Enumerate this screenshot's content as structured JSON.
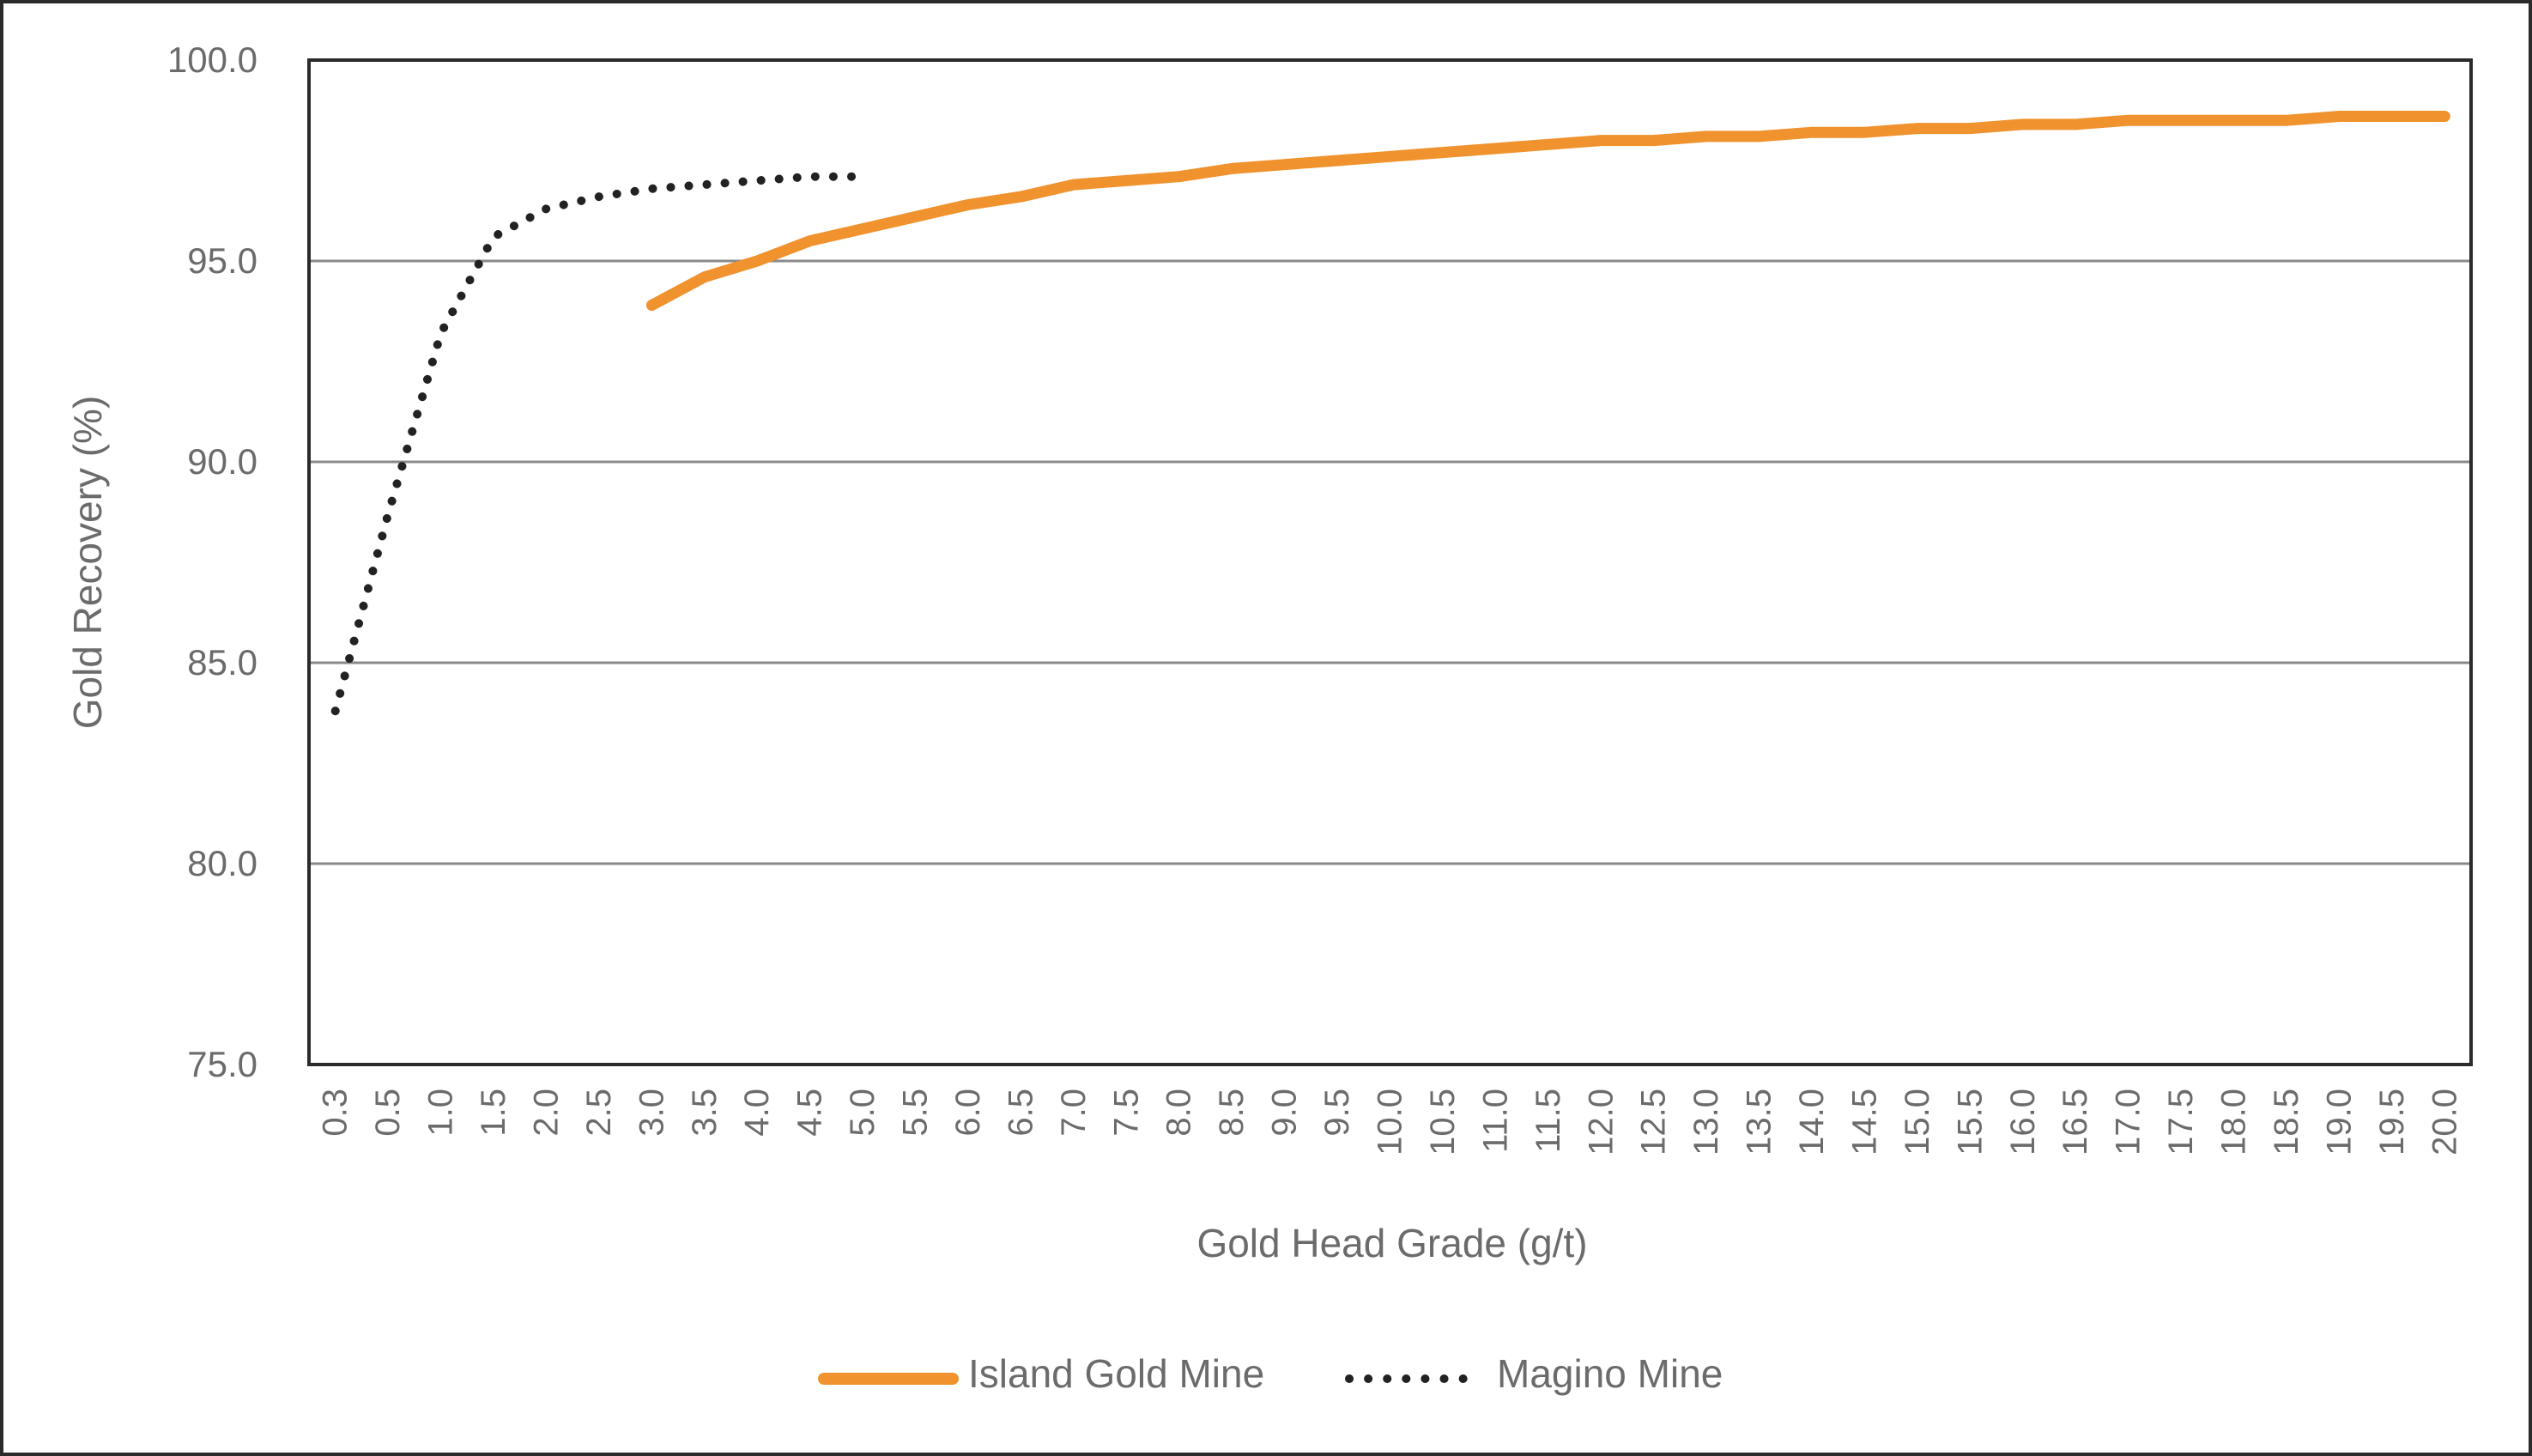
{
  "chart_data": {
    "type": "line",
    "title": "",
    "xlabel": "Gold Head Grade (g/t)",
    "ylabel": "Gold Recovery (%)",
    "ylim": [
      75.0,
      100.0
    ],
    "yticks": [
      "75.0",
      "80.0",
      "85.0",
      "90.0",
      "95.0",
      "100.0"
    ],
    "grid": {
      "horizontal": true,
      "vertical": false
    },
    "legend_position": "bottom",
    "categories": [
      "0.3",
      "0.5",
      "1.0",
      "1.5",
      "2.0",
      "2.5",
      "3.0",
      "3.5",
      "4.0",
      "4.5",
      "5.0",
      "5.5",
      "6.0",
      "6.5",
      "7.0",
      "7.5",
      "8.0",
      "8.5",
      "9.0",
      "9.5",
      "10.0",
      "10.5",
      "11.0",
      "11.5",
      "12.0",
      "12.5",
      "13.0",
      "13.5",
      "14.0",
      "14.5",
      "15.0",
      "15.5",
      "16.0",
      "16.5",
      "17.0",
      "17.5",
      "18.0",
      "18.5",
      "19.0",
      "19.5",
      "20.0"
    ],
    "series": [
      {
        "name": "Island Gold Mine",
        "style": "solid",
        "color": "#F0922E",
        "values": [
          null,
          null,
          null,
          null,
          null,
          null,
          93.9,
          94.6,
          95.0,
          95.5,
          95.8,
          96.1,
          96.4,
          96.6,
          96.9,
          97.0,
          97.1,
          97.3,
          97.4,
          97.5,
          97.6,
          97.7,
          97.8,
          97.9,
          98.0,
          98.0,
          98.1,
          98.1,
          98.2,
          98.2,
          98.3,
          98.3,
          98.4,
          98.4,
          98.5,
          98.5,
          98.5,
          98.5,
          98.6,
          98.6,
          98.6
        ]
      },
      {
        "name": "Magino Mine",
        "style": "dotted",
        "color": "#222222",
        "values": [
          83.8,
          88.7,
          93.2,
          95.6,
          96.3,
          96.6,
          96.8,
          96.9,
          97.0,
          97.1,
          97.1,
          null,
          null,
          null,
          null,
          null,
          null,
          null,
          null,
          null,
          null,
          null,
          null,
          null,
          null,
          null,
          null,
          null,
          null,
          null,
          null,
          null,
          null,
          null,
          null,
          null,
          null,
          null,
          null,
          null,
          null
        ]
      }
    ]
  },
  "legend": {
    "items": [
      {
        "label": "Island Gold Mine"
      },
      {
        "label": "Magino Mine"
      }
    ]
  },
  "colors": {
    "island": "#F0922E",
    "magino": "#222222",
    "grid": "#8a8a8a",
    "axis_text": "#6b6b6b",
    "frame": "#2b2b2b"
  }
}
